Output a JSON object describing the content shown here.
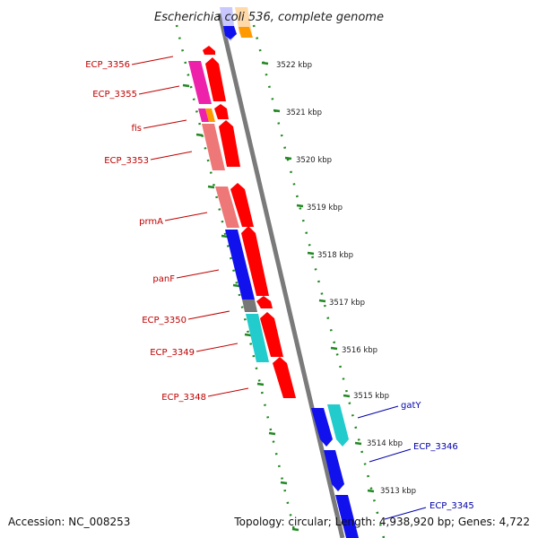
{
  "header": {
    "title": "Escherichia coli 536, complete genome"
  },
  "footer": {
    "accession": "Accession: NC_008253",
    "summary": "Topology: circular; Length: 4,938,920 bp; Genes: 4,722"
  },
  "scale": {
    "ticks": [
      "3522 kbp",
      "3521 kbp",
      "3520 kbp",
      "3519 kbp",
      "3518 kbp",
      "3517 kbp",
      "3516 kbp",
      "3515 kbp",
      "3514 kbp",
      "3513 kbp"
    ]
  },
  "gene_labels_left": [
    "ECP_3356",
    "ECP_3355",
    "fis",
    "ECP_3353",
    "prmA",
    "panF",
    "ECP_3350",
    "ECP_3349",
    "ECP_3348"
  ],
  "gene_labels_right": [
    "gatY",
    "ECP_3346",
    "ECP_3345"
  ],
  "colors": {
    "red": "#ff0000",
    "pink": "#ee7777",
    "magenta": "#ee22aa",
    "blue": "#1111ee",
    "cyan": "#22cccc",
    "orange": "#ff9900",
    "grey": "#777777",
    "label_red": "#c00000",
    "label_blue": "#0000aa",
    "tick_green": "#228822"
  }
}
